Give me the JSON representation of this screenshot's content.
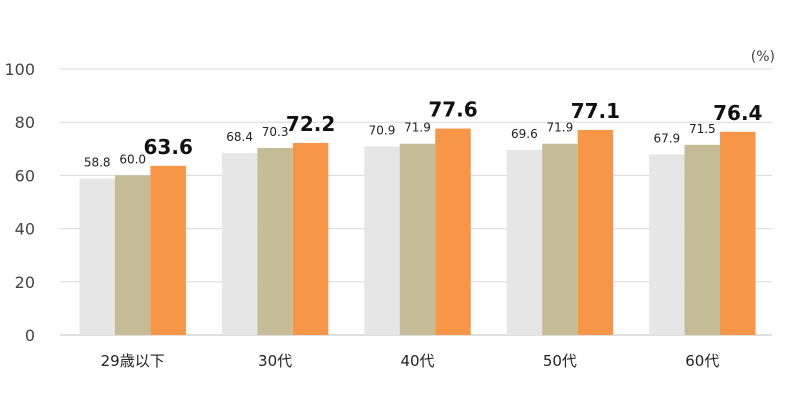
{
  "chart_data": {
    "type": "bar",
    "unit_label": "(%)",
    "categories": [
      "29歳以下",
      "30代",
      "40代",
      "50代",
      "60代"
    ],
    "series": [
      {
        "values": [
          58.8,
          68.4,
          70.9,
          69.6,
          67.9
        ],
        "color": "#e6e6e6"
      },
      {
        "values": [
          60.0,
          70.3,
          71.9,
          71.9,
          71.5
        ],
        "color": "#c4bc96"
      },
      {
        "values": [
          63.6,
          72.2,
          77.6,
          77.1,
          76.4
        ],
        "color": "#f79646",
        "label_style": "bold"
      }
    ],
    "ylim": [
      0,
      100
    ],
    "yticks": [
      0,
      20,
      40,
      60,
      80,
      100
    ],
    "grid": true,
    "gridline_color": "#d9d9d9",
    "legend": "none"
  }
}
